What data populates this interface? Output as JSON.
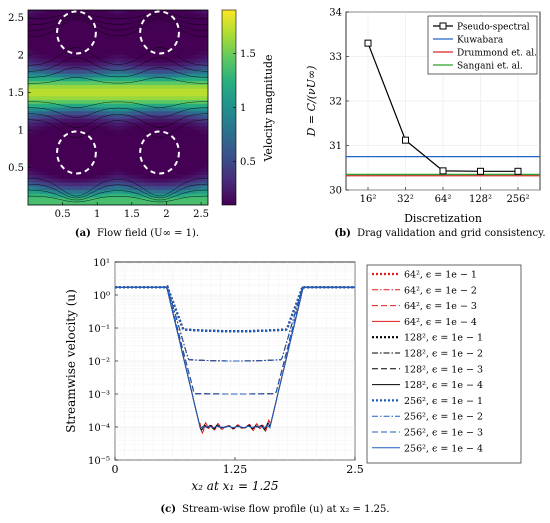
{
  "colors": {
    "viridis": [
      "#440154",
      "#472c7a",
      "#3b518b",
      "#2c718e",
      "#21908d",
      "#27ad81",
      "#5cc863",
      "#aadc32",
      "#fde725"
    ],
    "black": "#000000",
    "red": "#e41a1c",
    "blue": "#1f5fbf",
    "green": "#2ca02c",
    "kuwabara": "#2166c4",
    "drummond": "#d62728"
  },
  "chart_data": [
    {
      "type": "heatmap",
      "caption_tag": "(a)",
      "caption": "Flow field (U∞ = 1).",
      "x_ticks": [
        "0.5",
        "1",
        "1.5",
        "2",
        "2.5"
      ],
      "y_ticks": [
        "0.5",
        "1",
        "1.5",
        "2",
        "2.5"
      ],
      "colorbar_ticks": [
        "0.5",
        "1",
        "1.5"
      ],
      "colorbar_label": "Velocity magnitude",
      "colorbar_range": [
        0.1,
        1.9
      ],
      "obstacle_centers": [
        [
          0.7,
          0.7
        ],
        [
          1.9,
          0.7
        ],
        [
          0.7,
          2.3
        ],
        [
          1.9,
          2.3
        ]
      ]
    },
    {
      "type": "line",
      "caption_tag": "(b)",
      "caption": "Drag validation and grid consistency.",
      "xlabel": "Discretization",
      "ylabel": "D = C/(νU∞)",
      "categories": [
        "16²",
        "32²",
        "64²",
        "128²",
        "256²"
      ],
      "ylim": [
        30,
        34
      ],
      "y_ticks": [
        "30",
        "31",
        "32",
        "33",
        "34"
      ],
      "series": [
        {
          "name": "Pseudo-spectral",
          "values": [
            33.3,
            31.12,
            30.43,
            30.42,
            30.42
          ]
        },
        {
          "name": "Kuwabara",
          "value": 30.75
        },
        {
          "name": "Drummond et. al.",
          "value": 30.32
        },
        {
          "name": "Sangani et. al.",
          "value": 30.35
        }
      ],
      "legend": "top-right"
    },
    {
      "type": "line",
      "caption_tag": "(c)",
      "caption": "Stream-wise flow profile (u) at x₂ = 1.25.",
      "xlabel": "x₂ at x₁ = 1.25",
      "ylabel": "Streamwise velocity (u)",
      "x_ticks": [
        "0",
        "1.25",
        "2.5"
      ],
      "y_ticks": [
        "10¹",
        "10⁰",
        "10⁻¹",
        "10⁻²",
        "10⁻³",
        "10⁻⁴",
        "10⁻⁵"
      ],
      "xlim": [
        0,
        2.5
      ],
      "y_log_range": [
        -5,
        1
      ],
      "legend": "right",
      "series": [
        {
          "name": "64², ϵ = 1e − 1",
          "plateau": 0.08
        },
        {
          "name": "64², ϵ = 1e − 2",
          "plateau": 0.01
        },
        {
          "name": "64², ϵ = 1e − 3",
          "plateau": 0.001
        },
        {
          "name": "64², ϵ = 1e − 4",
          "plateau": 0.0001
        },
        {
          "name": "128², ϵ = 1e − 1",
          "plateau": 0.08
        },
        {
          "name": "128², ϵ = 1e − 2",
          "plateau": 0.01
        },
        {
          "name": "128², ϵ = 1e − 3",
          "plateau": 0.001
        },
        {
          "name": "128², ϵ = 1e − 4",
          "plateau": 0.0001
        },
        {
          "name": "256², ϵ = 1e − 1",
          "plateau": 0.08
        },
        {
          "name": "256², ϵ = 1e − 2",
          "plateau": 0.01
        },
        {
          "name": "256², ϵ = 1e − 3",
          "plateau": 0.001
        },
        {
          "name": "256², ϵ = 1e − 4",
          "plateau": 0.0001
        }
      ]
    }
  ]
}
